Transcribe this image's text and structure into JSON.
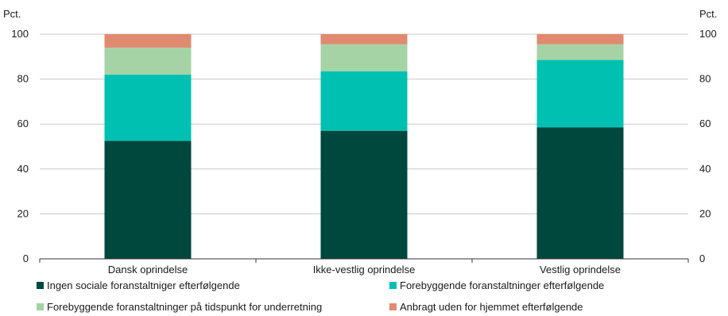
{
  "chart_data": {
    "type": "bar",
    "stacked": true,
    "y_unit_left": "Pct.",
    "y_unit_right": "Pct.",
    "ylim": [
      0,
      100
    ],
    "yticks": [
      0,
      20,
      40,
      60,
      80,
      100
    ],
    "grid": true,
    "legend_position": "bottom",
    "categories": [
      "Dansk oprindelse",
      "Ikke-vestlig oprindelse",
      "Vestlig oprindelse"
    ],
    "series": [
      {
        "name": "Ingen sociale foranstaltniger efterfølgende",
        "color": "#00473E",
        "values": [
          52.5,
          57,
          58.5
        ]
      },
      {
        "name": "Forebyggende foranstaltninger efterfølgende",
        "color": "#00C1B1",
        "values": [
          29.5,
          26.5,
          30
        ]
      },
      {
        "name": "Forebyggende foranstaltninger på tidspunkt for underretning",
        "color": "#A5D3A5",
        "values": [
          12,
          12,
          7
        ]
      },
      {
        "name": "Anbragt uden for hjemmet efterfølgende",
        "color": "#E08A70",
        "values": [
          6,
          4.5,
          4.5
        ]
      }
    ]
  }
}
